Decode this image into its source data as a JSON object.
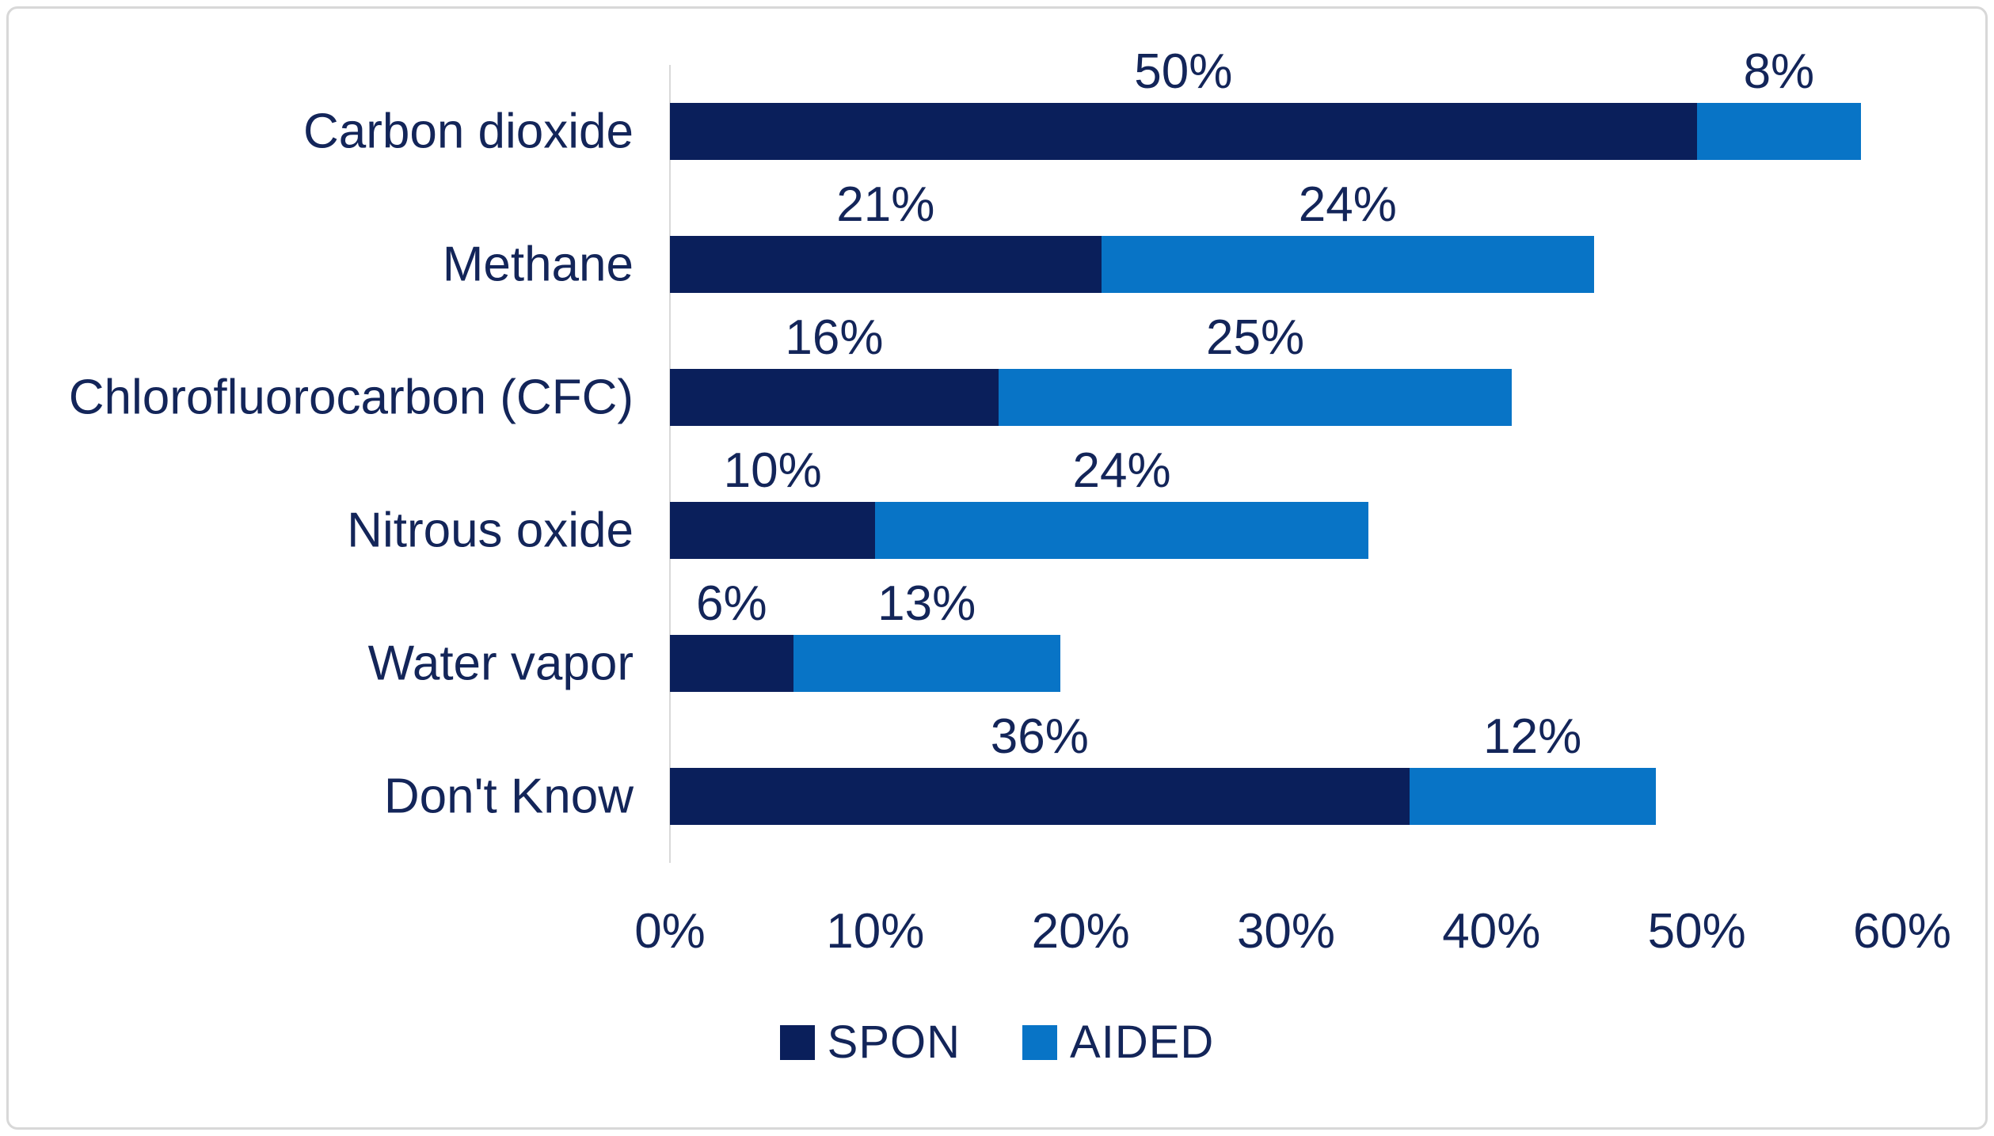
{
  "chart_data": {
    "type": "bar",
    "orientation": "horizontal",
    "stacked": true,
    "title": "",
    "xlabel": "",
    "ylabel": "",
    "categories": [
      "Carbon dioxide",
      "Methane",
      "Chlorofluorocarbon (CFC)",
      "Nitrous oxide",
      "Water vapor",
      "Don't Know"
    ],
    "series": [
      {
        "name": "SPON",
        "color": "#0a1f5b",
        "values": [
          50,
          21,
          16,
          10,
          6,
          36
        ]
      },
      {
        "name": "AIDED",
        "color": "#0874c6",
        "values": [
          8,
          24,
          25,
          24,
          13,
          12
        ]
      }
    ],
    "data_labels": [
      [
        "50%",
        "8%"
      ],
      [
        "21%",
        "24%"
      ],
      [
        "16%",
        "25%"
      ],
      [
        "10%",
        "24%"
      ],
      [
        "6%",
        "13%"
      ],
      [
        "36%",
        "12%"
      ]
    ],
    "xlim": [
      0,
      60
    ],
    "x_ticks": [
      {
        "value": 0,
        "label": "0%"
      },
      {
        "value": 10,
        "label": "10%"
      },
      {
        "value": 20,
        "label": "20%"
      },
      {
        "value": 30,
        "label": "30%"
      },
      {
        "value": 40,
        "label": "40%"
      },
      {
        "value": 50,
        "label": "50%"
      },
      {
        "value": 60,
        "label": "60%"
      }
    ],
    "legend": {
      "position": "bottom",
      "entries": [
        "SPON",
        "AIDED"
      ]
    },
    "grid": false,
    "colors": {
      "text": "#132559",
      "axis_line": "#d9d9d9",
      "frame_border": "#d8d8d8",
      "background": "#ffffff"
    }
  }
}
